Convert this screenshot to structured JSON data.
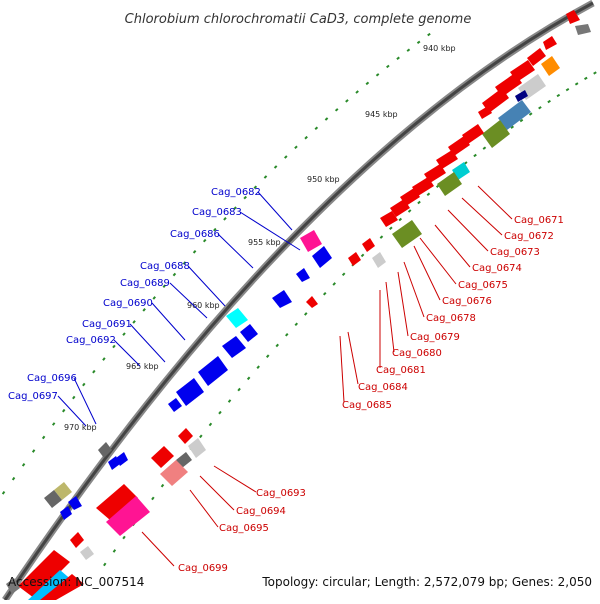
{
  "title": "Chlorobium chlorochromatii CaD3, complete genome",
  "footer": {
    "accession": "Accession: NC_007514",
    "summary": "Topology: circular; Length: 2,572,079 bp; Genes: 2,050"
  },
  "kbp_labels": [
    "940 kbp",
    "945 kbp",
    "950 kbp",
    "955 kbp",
    "960 kbp",
    "965 kbp",
    "970 kbp"
  ],
  "left_labels": [
    "Cag_0682",
    "Cag_0683",
    "Cag_0686",
    "Cag_0688",
    "Cag_0689",
    "Cag_0690",
    "Cag_0691",
    "Cag_0692",
    "Cag_0696",
    "Cag_0697"
  ],
  "right_labels": [
    "Cag_0671",
    "Cag_0672",
    "Cag_0673",
    "Cag_0674",
    "Cag_0675",
    "Cag_0676",
    "Cag_0678",
    "Cag_0679",
    "Cag_0680",
    "Cag_0681",
    "Cag_0684",
    "Cag_0685"
  ],
  "lower_labels": [
    "Cag_0693",
    "Cag_0694",
    "Cag_0695",
    "Cag_0699"
  ],
  "colors": {
    "backbone": "#555555",
    "left_label": "#0000cc",
    "right_label": "#cc0000",
    "tick": "#2a8a2a"
  }
}
